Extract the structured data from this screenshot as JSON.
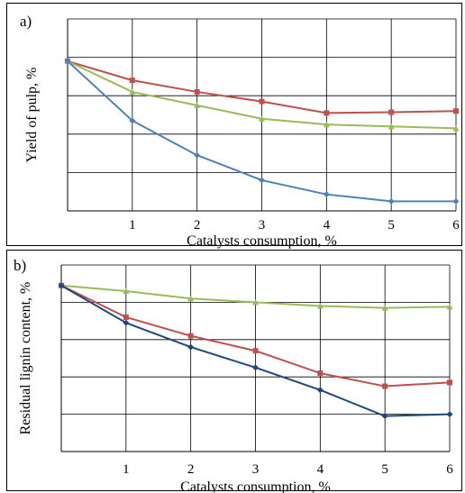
{
  "chart_data": [
    {
      "type": "line",
      "panel_label": "a)",
      "xlabel": "Catalysts consumption, %",
      "ylabel": "Yield of pulp, %",
      "x_ticks": [
        1,
        2,
        3,
        4,
        5,
        6
      ],
      "xlim": [
        0,
        6
      ],
      "ylim": [
        0,
        5
      ],
      "y_ticks_labeled": false,
      "grid": true,
      "series": [
        {
          "color": "#c0504d",
          "marker": "square",
          "x": [
            0,
            1,
            2,
            3,
            4,
            5,
            6
          ],
          "values": [
            3.9,
            3.4,
            3.1,
            2.85,
            2.55,
            2.57,
            2.6
          ]
        },
        {
          "color": "#9bbb59",
          "marker": "triangle",
          "x": [
            0,
            1,
            2,
            3,
            4,
            5,
            6
          ],
          "values": [
            3.9,
            3.1,
            2.75,
            2.4,
            2.25,
            2.2,
            2.15
          ]
        },
        {
          "color": "#4f81bd",
          "marker": "diamond",
          "x": [
            0,
            1,
            2,
            3,
            4,
            5,
            6
          ],
          "values": [
            3.9,
            2.35,
            1.45,
            0.8,
            0.43,
            0.25,
            0.25
          ]
        }
      ]
    },
    {
      "type": "line",
      "panel_label": "b)",
      "xlabel": "Catalysts consumption, %",
      "ylabel": "Residual lignin content, %",
      "x_ticks": [
        1,
        2,
        3,
        4,
        5,
        6
      ],
      "xlim": [
        0,
        6
      ],
      "ylim": [
        0,
        5
      ],
      "y_ticks_labeled": false,
      "grid": true,
      "series": [
        {
          "color": "#9bbb59",
          "marker": "triangle",
          "x": [
            0,
            1,
            2,
            3,
            4,
            5,
            6
          ],
          "values": [
            4.45,
            4.3,
            4.1,
            4.0,
            3.9,
            3.85,
            3.88
          ]
        },
        {
          "color": "#c0504d",
          "marker": "square",
          "x": [
            0,
            1,
            2,
            3,
            4,
            5,
            6
          ],
          "values": [
            4.45,
            3.6,
            3.1,
            2.7,
            2.1,
            1.75,
            1.85
          ]
        },
        {
          "color": "#1f497d",
          "marker": "diamond",
          "x": [
            0,
            1,
            2,
            3,
            4,
            5,
            6
          ],
          "values": [
            4.45,
            3.45,
            2.8,
            2.25,
            1.65,
            0.95,
            1.0
          ]
        }
      ]
    }
  ]
}
